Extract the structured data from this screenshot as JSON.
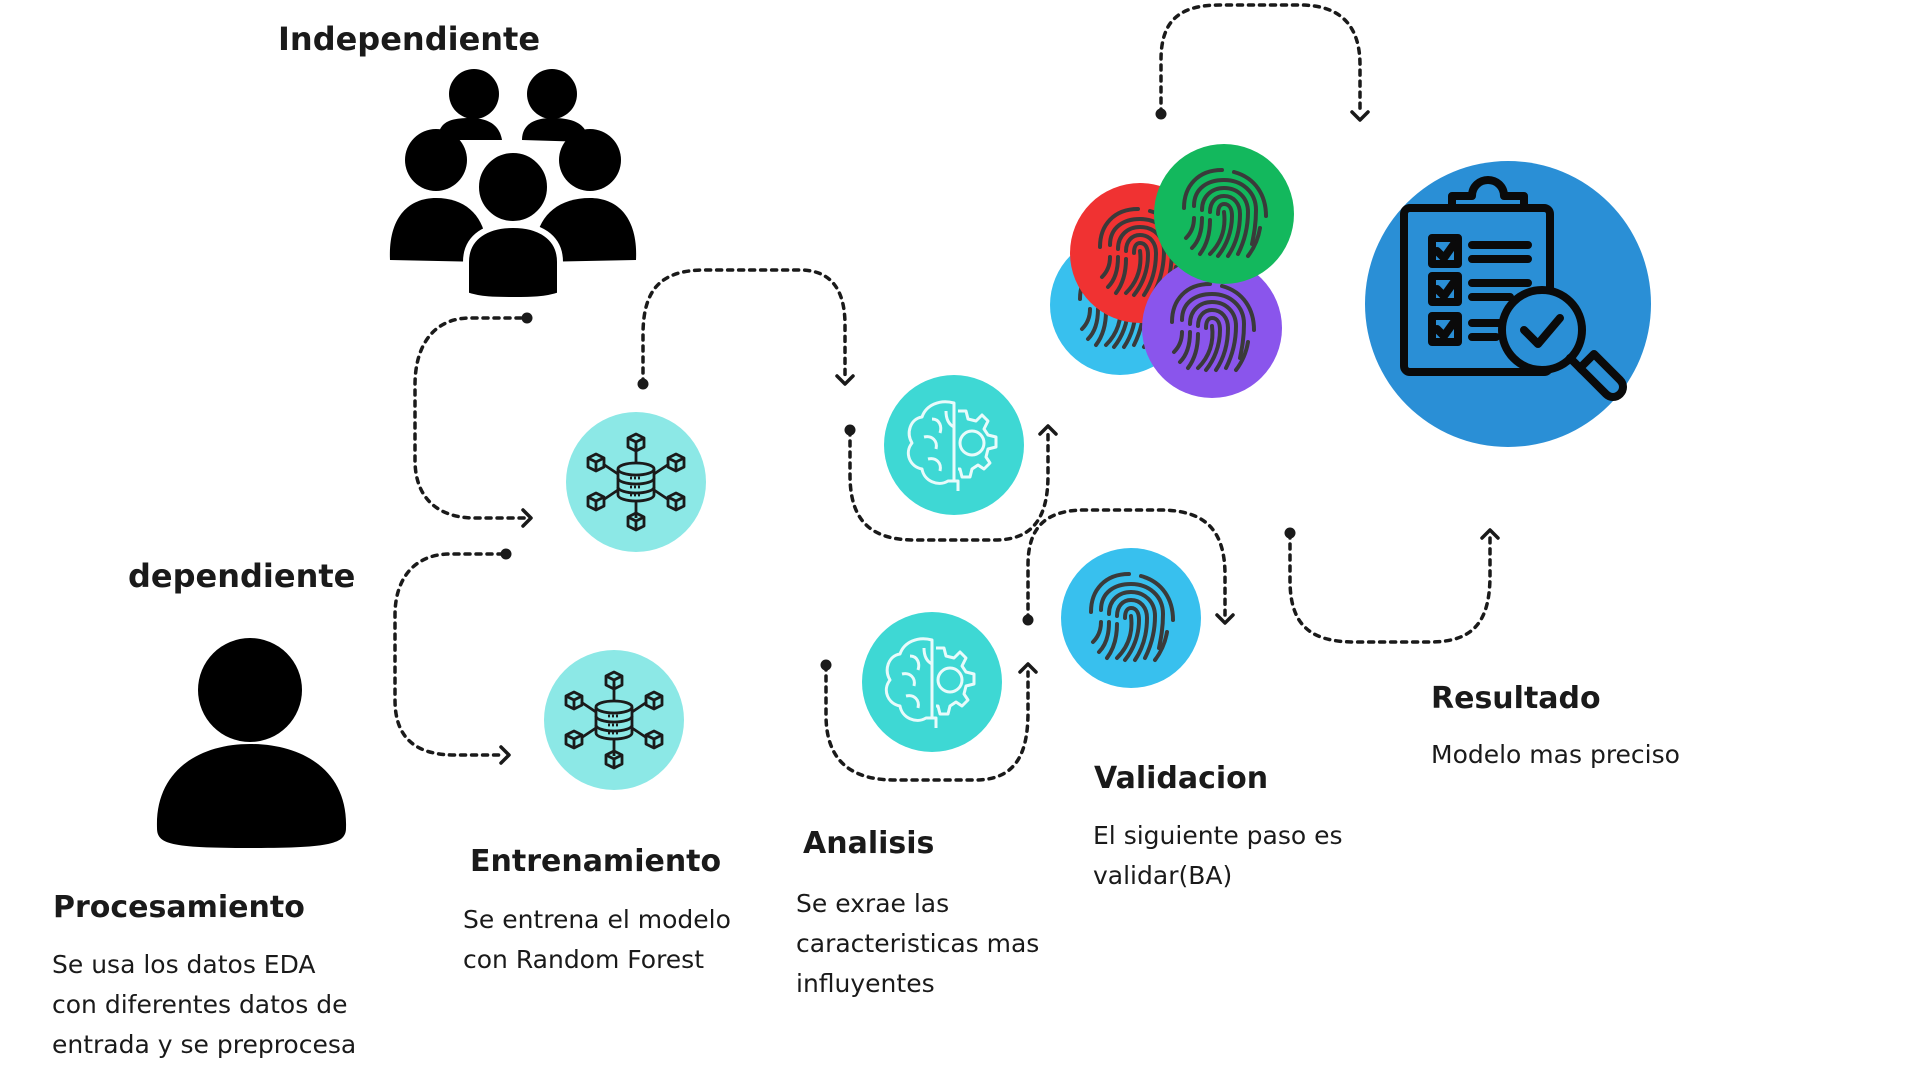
{
  "headings": {
    "independent": "Independiente",
    "dependent": "dependiente"
  },
  "steps": [
    {
      "id": "procesamiento",
      "title": "Procesamiento",
      "lines": [
        "Se usa los datos EDA",
        "con diferentes  datos de",
        "entrada y se preprocesa"
      ]
    },
    {
      "id": "entrenamiento",
      "title": "Entrenamiento",
      "lines": [
        "Se entrena el modelo",
        "con Random Forest"
      ]
    },
    {
      "id": "analisis",
      "title": "Analisis",
      "lines": [
        "Se exrae las",
        "caracteristicas mas",
        "influyentes"
      ]
    },
    {
      "id": "validacion",
      "title": "Validacion",
      "lines": [
        "El siguiente paso es",
        "validar(BA)"
      ]
    },
    {
      "id": "resultado",
      "title": "Resultado",
      "lines": [
        "Modelo mas preciso"
      ]
    }
  ],
  "icons": {
    "group": "people-group-icon",
    "person": "person-icon",
    "database": "database-network-icon",
    "brain": "brain-gear-icon",
    "fingerprint": "fingerprint-icon",
    "clipboard": "clipboard-checklist-icon"
  },
  "colors": {
    "text": "#1a1a1a",
    "silhouette": "#000000",
    "teal_light": "#8ce8e6",
    "teal": "#3ed8d4",
    "sky_blue": "#38c0ee",
    "red": "#f03232",
    "green": "#13b85d",
    "purple": "#8a55ec",
    "result_blue": "#2a8fd6",
    "arrow": "#1a1a1a"
  }
}
